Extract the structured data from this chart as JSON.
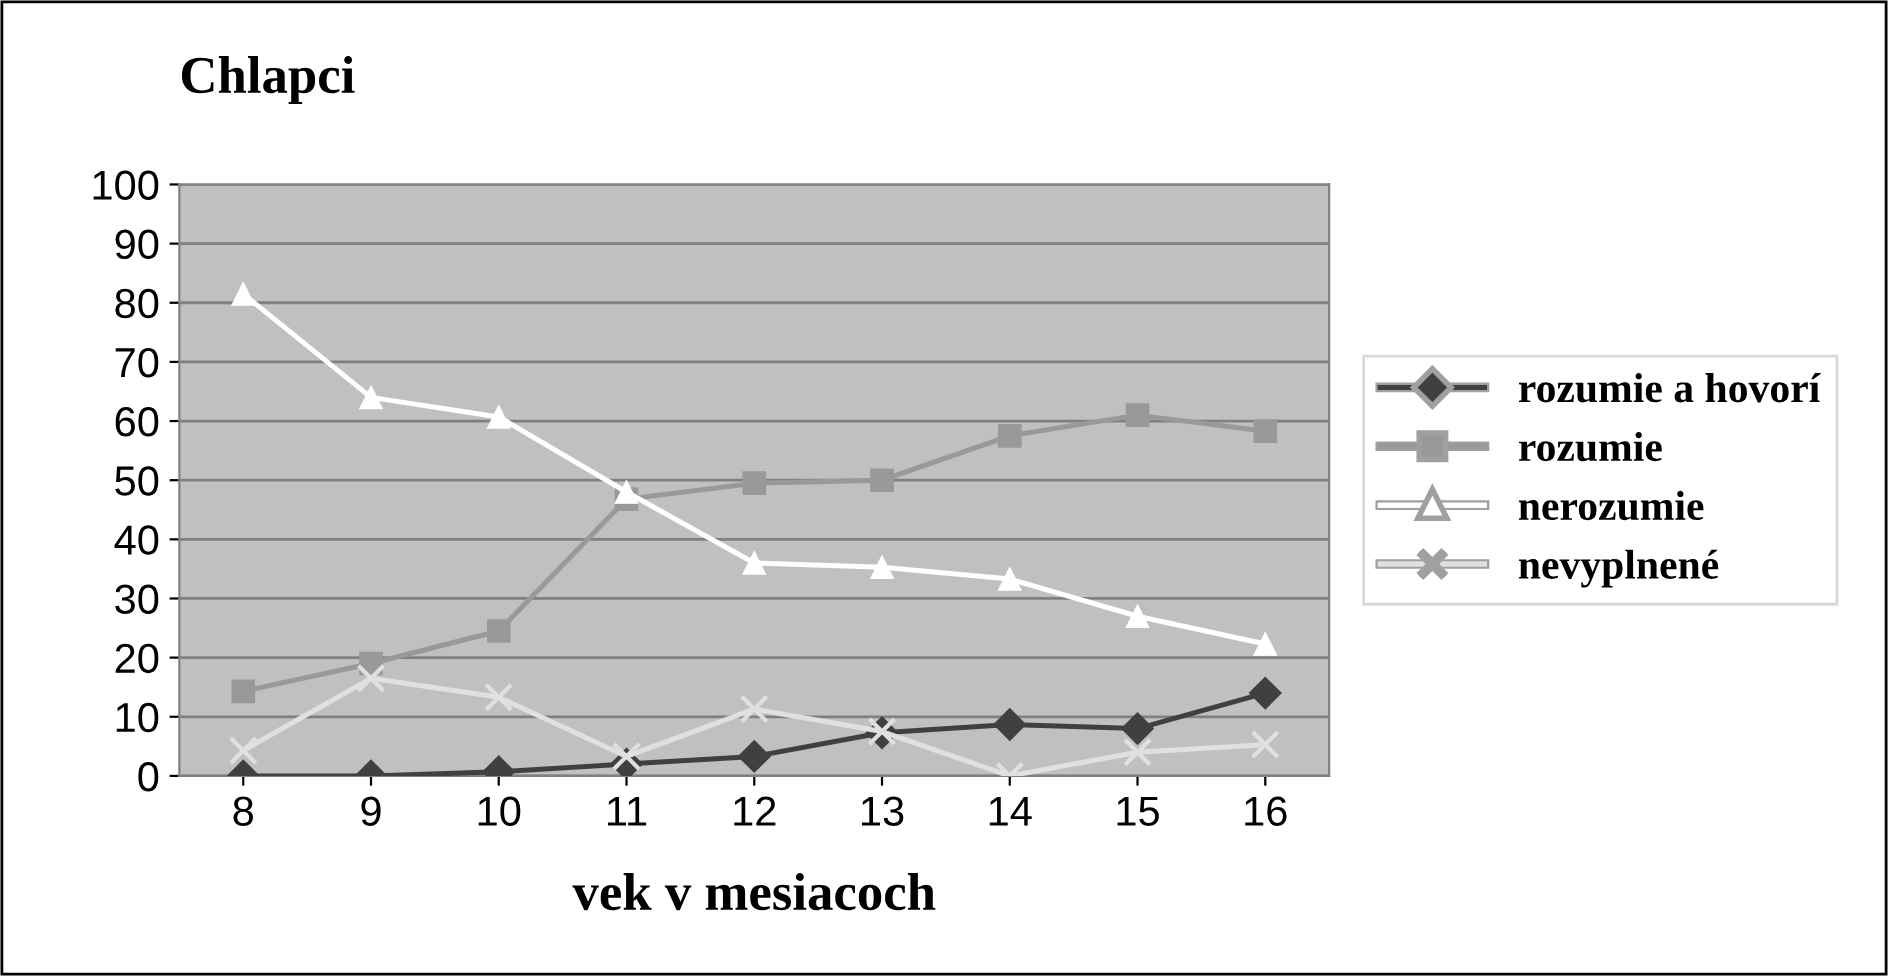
{
  "chart_data": {
    "type": "line",
    "title": "Chlapci",
    "xlabel": "vek v mesiacoch",
    "categories": [
      "8",
      "9",
      "10",
      "11",
      "12",
      "13",
      "14",
      "15",
      "16"
    ],
    "series": [
      {
        "name": "rozumie a hovorí",
        "color": "#404040",
        "marker": "diamond",
        "values": [
          0,
          0,
          0.7,
          2,
          3.3,
          7.3,
          8.7,
          8,
          14
        ]
      },
      {
        "name": "rozumie",
        "color": "#999999",
        "marker": "square",
        "values": [
          14.3,
          19,
          24.5,
          46.8,
          49.5,
          50,
          57.5,
          61,
          58.3
        ]
      },
      {
        "name": "nerozumie",
        "color": "#ffffff",
        "marker": "triangle",
        "values": [
          81.5,
          64,
          60.7,
          48,
          36,
          35.3,
          33.3,
          27,
          22.3
        ]
      },
      {
        "name": "nevyplnené",
        "color": "#e0e0e0",
        "marker": "cross",
        "values": [
          4.3,
          16.5,
          13.3,
          3.3,
          11.3,
          7.5,
          0,
          4,
          5.3
        ]
      }
    ],
    "ylim": [
      0,
      100
    ],
    "yticks": [
      0,
      10,
      20,
      30,
      40,
      50,
      60,
      70,
      80,
      90,
      100
    ],
    "grid": "y",
    "legend": "right"
  }
}
